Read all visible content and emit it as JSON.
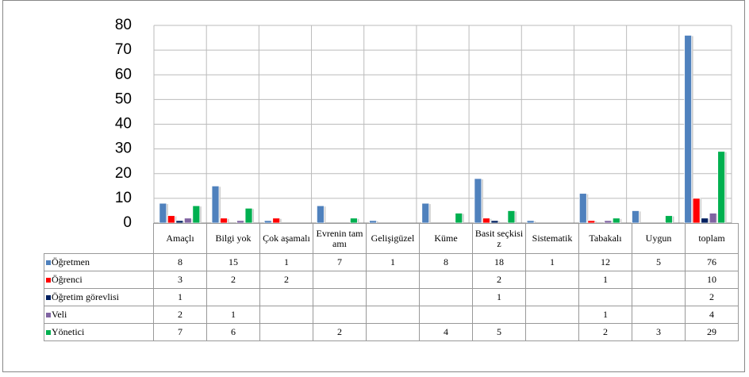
{
  "chart_data": {
    "type": "bar",
    "categories": [
      "Amaçlı",
      "Bilgi yok",
      "Çok aşamalı",
      "Evrenin tamamı",
      "Gelişigüzel",
      "Küme",
      "Basit seçkisiz",
      "Sistematik",
      "Tabakalı",
      "Uygun",
      "toplam"
    ],
    "series": [
      {
        "name": "Öğretmen",
        "color": "#4f81bd",
        "values": [
          8,
          15,
          1,
          7,
          1,
          8,
          18,
          1,
          12,
          5,
          76
        ]
      },
      {
        "name": "Öğrenci",
        "color": "#ff0000",
        "values": [
          3,
          2,
          2,
          null,
          null,
          null,
          2,
          null,
          1,
          null,
          10
        ]
      },
      {
        "name": "Öğretim görevlisi",
        "color": "#002060",
        "values": [
          1,
          null,
          null,
          null,
          null,
          null,
          1,
          null,
          null,
          null,
          2
        ]
      },
      {
        "name": "Veli",
        "color": "#8064a2",
        "values": [
          2,
          1,
          null,
          null,
          null,
          null,
          null,
          null,
          1,
          null,
          4
        ]
      },
      {
        "name": "Yönetici",
        "color": "#00b050",
        "values": [
          7,
          6,
          null,
          2,
          null,
          4,
          5,
          null,
          2,
          3,
          29
        ]
      }
    ],
    "ylim": [
      0,
      80
    ],
    "yticks": [
      0,
      10,
      20,
      30,
      40,
      50,
      60,
      70,
      80
    ],
    "grid": true
  }
}
